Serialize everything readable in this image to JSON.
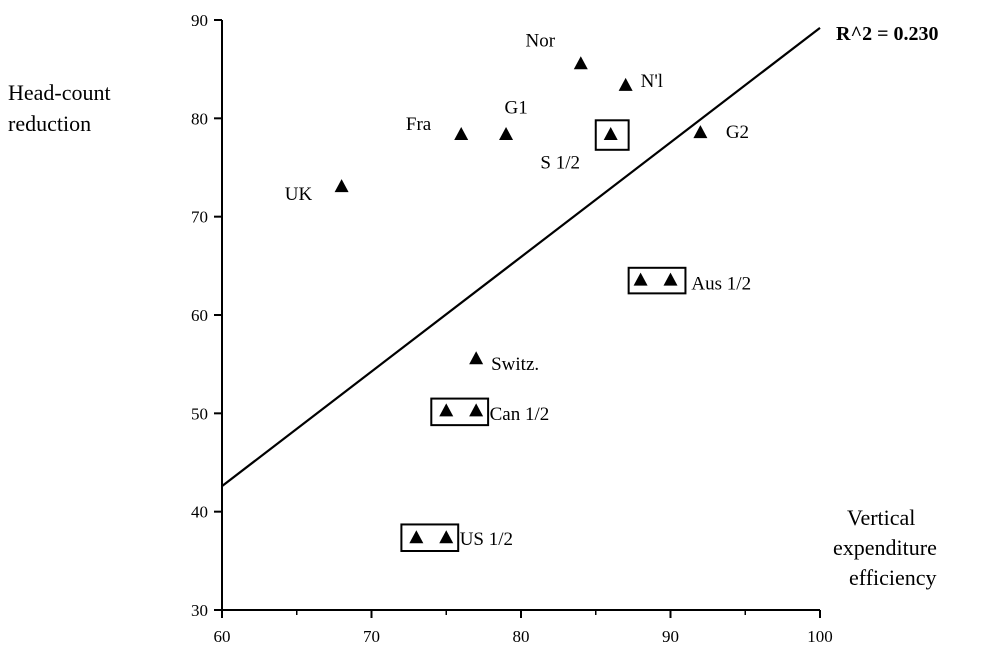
{
  "chart_data": {
    "type": "scatter",
    "title": "",
    "xlabel": [
      "Vertical",
      "expenditure",
      "efficiency"
    ],
    "ylabel": [
      "Head-count",
      "reduction"
    ],
    "xlim": [
      60,
      100
    ],
    "ylim": [
      30,
      90
    ],
    "xticks": [
      "60",
      "70",
      "80",
      "90",
      "100"
    ],
    "yticks": [
      "30",
      "40",
      "50",
      "60",
      "70",
      "80",
      "90"
    ],
    "grid": false,
    "trendline": {
      "x": [
        60,
        100
      ],
      "y": [
        42.6,
        89.2
      ],
      "label": "R^2 = 0.230"
    },
    "points": [
      {
        "x": 84.0,
        "y": 85.5
      },
      {
        "x": 87.0,
        "y": 83.3
      },
      {
        "x": 76.0,
        "y": 78.3
      },
      {
        "x": 79.0,
        "y": 78.3
      },
      {
        "x": 86.0,
        "y": 78.3
      },
      {
        "x": 92.0,
        "y": 78.5
      },
      {
        "x": 68.0,
        "y": 73.0
      },
      {
        "x": 88.0,
        "y": 63.5
      },
      {
        "x": 90.0,
        "y": 63.5
      },
      {
        "x": 77.0,
        "y": 55.5
      },
      {
        "x": 75.0,
        "y": 50.2
      },
      {
        "x": 77.0,
        "y": 50.2
      },
      {
        "x": 73.0,
        "y": 37.3
      },
      {
        "x": 75.0,
        "y": 37.3
      }
    ],
    "boxes": [
      {
        "x0": 85.0,
        "x1": 87.2,
        "y0": 76.8,
        "y1": 79.8
      },
      {
        "x0": 87.2,
        "x1": 91.0,
        "y0": 62.2,
        "y1": 64.8
      },
      {
        "x0": 74.0,
        "x1": 77.8,
        "y0": 48.8,
        "y1": 51.5
      },
      {
        "x0": 72.0,
        "x1": 75.8,
        "y0": 36.0,
        "y1": 38.7
      }
    ],
    "annotations": [
      {
        "text": "Nor",
        "x": 80.3,
        "y": 87.3,
        "anchor": "start"
      },
      {
        "text": "N'l",
        "x": 88.0,
        "y": 83.2,
        "anchor": "start"
      },
      {
        "text": "Fra",
        "x": 72.3,
        "y": 78.8,
        "anchor": "start"
      },
      {
        "text": "G1",
        "x": 78.9,
        "y": 80.5,
        "anchor": "start"
      },
      {
        "text": "G2",
        "x": 93.7,
        "y": 78.0,
        "anchor": "start"
      },
      {
        "text": "S 1/2",
        "x": 81.3,
        "y": 74.9,
        "anchor": "start"
      },
      {
        "text": "UK",
        "x": 64.2,
        "y": 71.7,
        "anchor": "start"
      },
      {
        "text": "Aus 1/2",
        "x": 91.4,
        "y": 62.6,
        "anchor": "start"
      },
      {
        "text": "Switz.",
        "x": 78.0,
        "y": 54.4,
        "anchor": "start"
      },
      {
        "text": "Can 1/2",
        "x": 77.9,
        "y": 49.3,
        "anchor": "start"
      },
      {
        "text": "US 1/2",
        "x": 75.9,
        "y": 36.6,
        "anchor": "start"
      }
    ]
  }
}
